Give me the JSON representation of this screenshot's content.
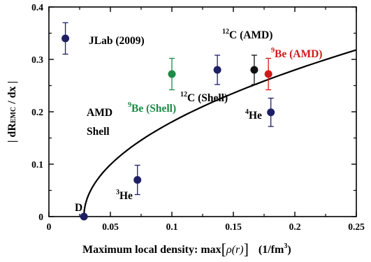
{
  "chart_data": {
    "type": "scatter",
    "xlabel": "Maximum local density:  max[ρ(r)]   (1/fm³)",
    "xlabel_parts": {
      "lead": "Maximum local density:  max",
      "lb": "[",
      "rho": "ρ",
      "r": "(r)",
      "rb": "]",
      "unit": "(1/fm",
      "unit_exp": "3",
      "unit_close": ")"
    },
    "ylabel": "| dR_EMC / dx |",
    "ylabel_parts": {
      "lead": "| dR",
      "sub": "EMC",
      "tail": " / dx |"
    },
    "xlim": [
      0,
      0.25
    ],
    "ylim": [
      0,
      0.4
    ],
    "xticks": [
      0,
      0.05,
      0.1,
      0.15,
      0.2,
      0.25
    ],
    "xtick_labels": [
      "0",
      "0.05",
      "0.1",
      "0.15",
      "0.2",
      "0.25"
    ],
    "yticks": [
      0,
      0.1,
      0.2,
      0.3,
      0.4
    ],
    "ytick_labels": [
      "0",
      "0.1",
      "0.2",
      "0.3",
      "0.4"
    ],
    "colors": {
      "jlab": "#1f1f66",
      "amd_c12": "#111111",
      "amd_be9": "#d11a1a",
      "shell_be9": "#1e8a47"
    },
    "points": [
      {
        "x": 0.0134,
        "y": 0.34,
        "err": 0.03,
        "color": "#1f1f66"
      },
      {
        "x": 0.0285,
        "y": 0.0,
        "err": 0.0,
        "color": "#1f1f66"
      },
      {
        "x": 0.072,
        "y": 0.07,
        "err": 0.028,
        "color": "#1f1f66"
      },
      {
        "x": 0.1,
        "y": 0.272,
        "err": 0.03,
        "color": "#1e8a47"
      },
      {
        "x": 0.137,
        "y": 0.28,
        "err": 0.028,
        "color": "#1f1f66"
      },
      {
        "x": 0.167,
        "y": 0.28,
        "err": 0.028,
        "color": "#111111"
      },
      {
        "x": 0.1785,
        "y": 0.272,
        "err": 0.03,
        "color": "#d11a1a"
      },
      {
        "x": 0.1805,
        "y": 0.199,
        "err": 0.027,
        "color": "#1f1f66"
      }
    ],
    "curve": {
      "form": "sqrt",
      "x0": 0.0285,
      "a": 0.6757,
      "x_end": 0.25
    },
    "labels": {
      "jlab": "JLab (2009)",
      "c12_amd": {
        "sup": "12",
        "text": "C (AMD)"
      },
      "be9_amd": {
        "sup": "9",
        "text": "Be (AMD)"
      },
      "be9_shell": {
        "sup": "9",
        "text": "Be (Shell)"
      },
      "c12_shell": {
        "sup": "12",
        "text": "C (Shell)"
      },
      "amd": "AMD",
      "shell": "Shell",
      "he4": {
        "sup": "4",
        "text": "He"
      },
      "he3": {
        "sup": "3",
        "text": "He"
      },
      "d": "D"
    }
  }
}
